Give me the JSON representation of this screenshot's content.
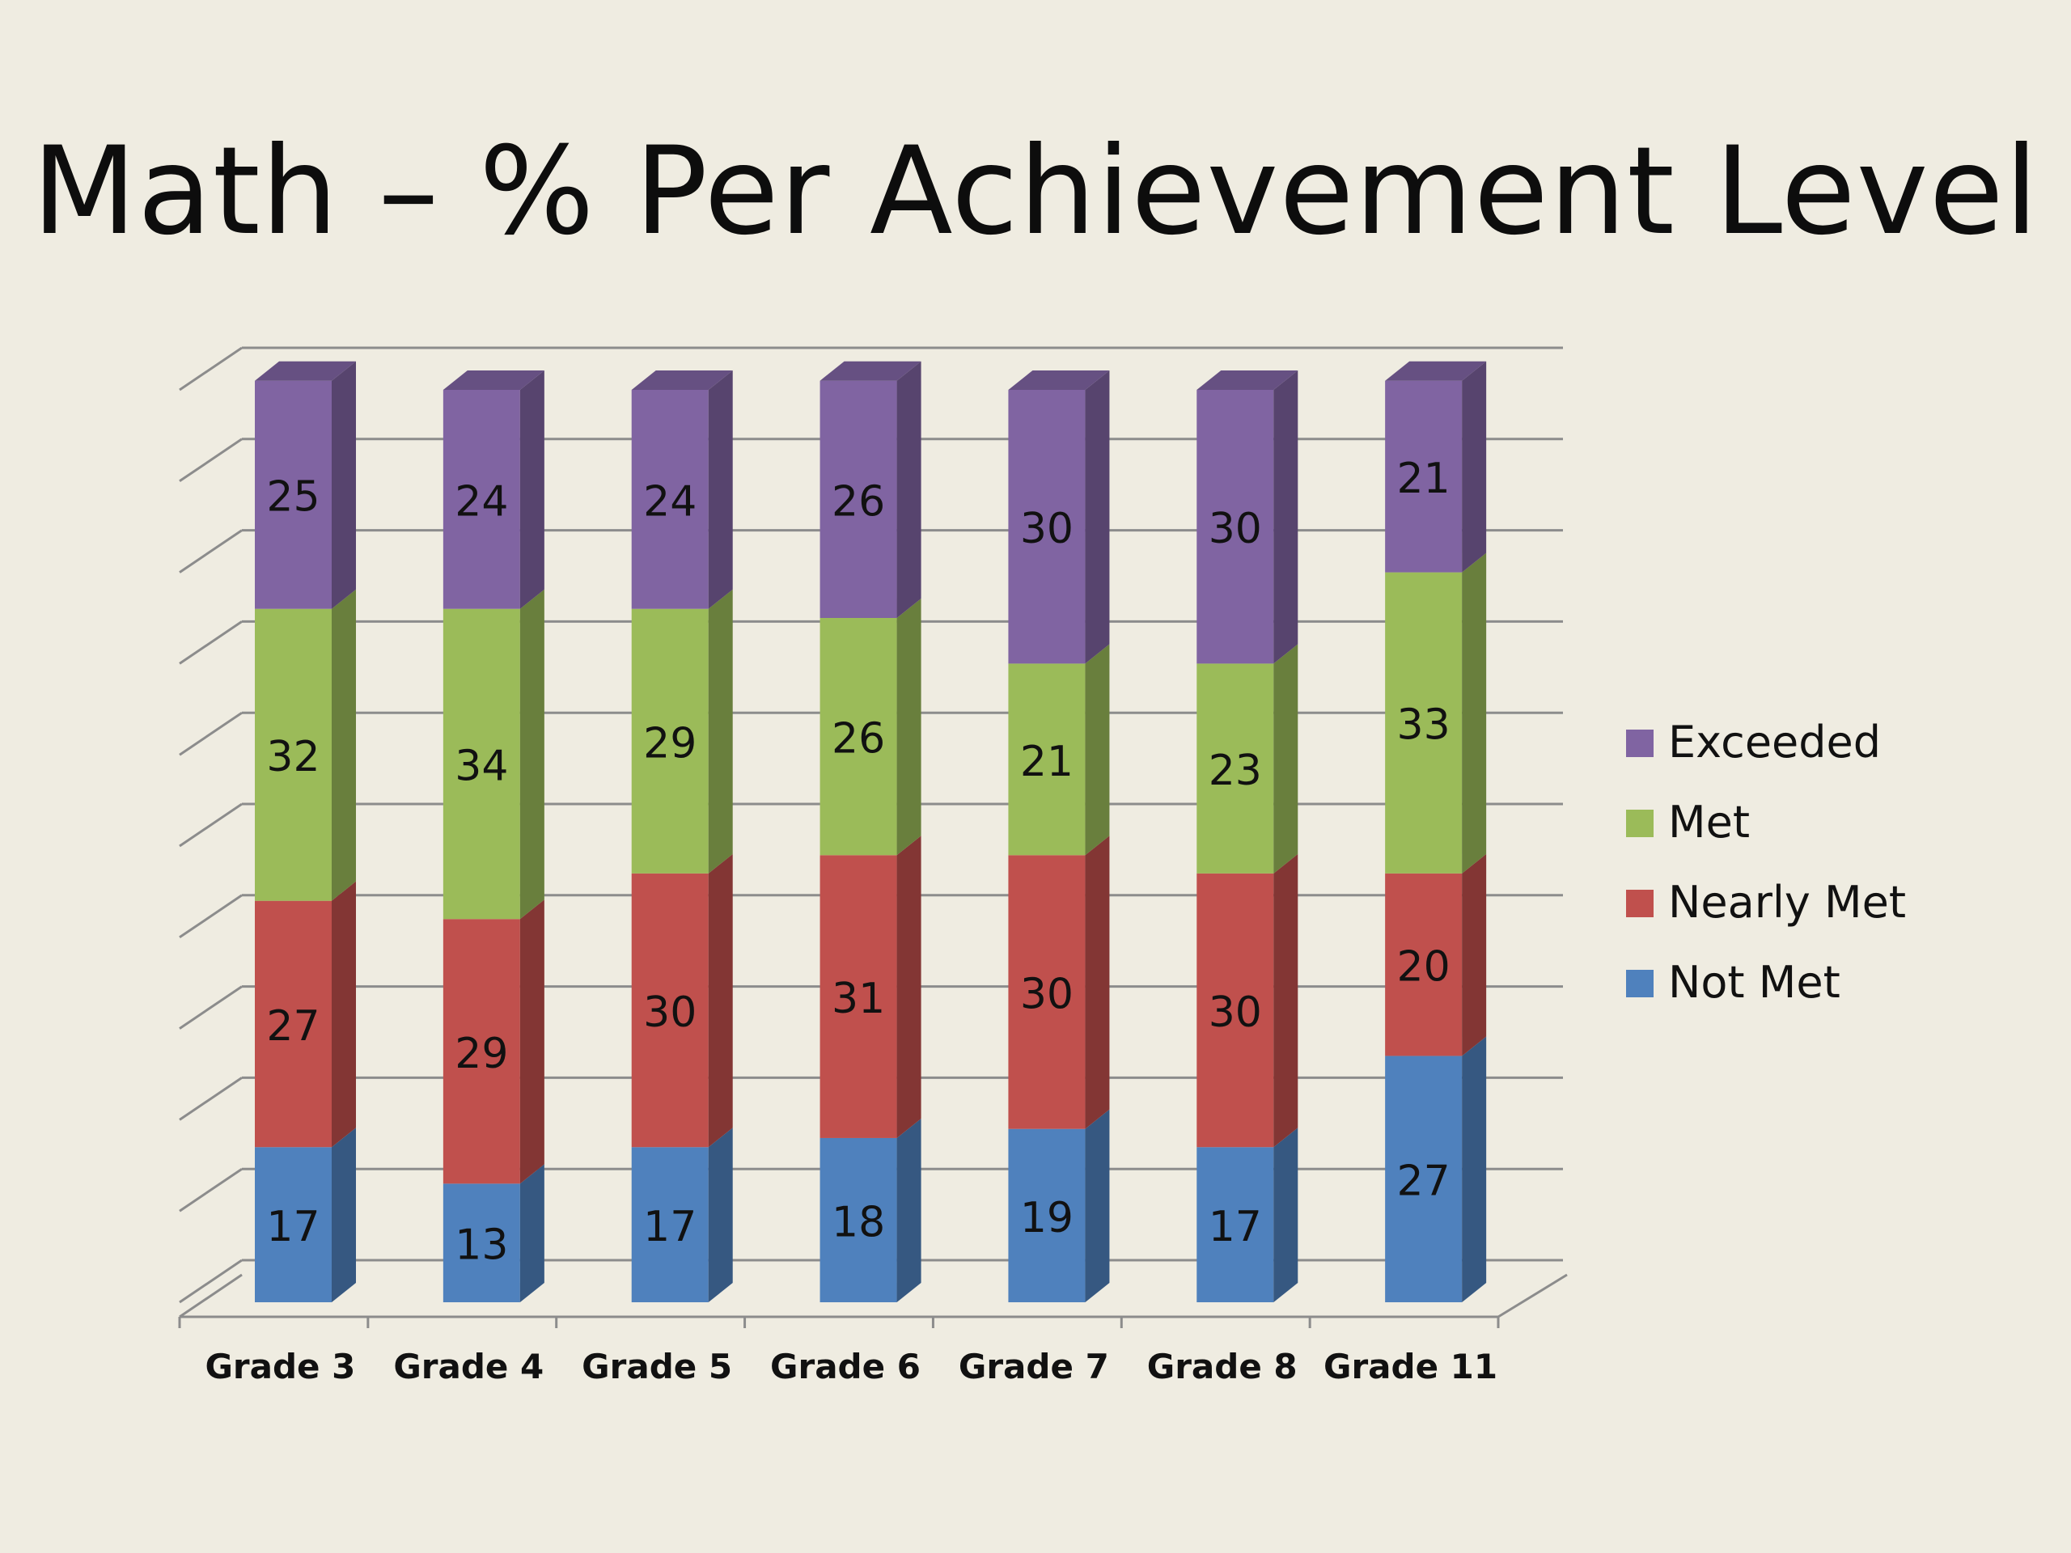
{
  "chart_data": {
    "type": "bar",
    "stacked": true,
    "style": "3d-column",
    "title": "Math – % Per Achievement Level",
    "xlabel": "",
    "ylabel": "",
    "ylim": [
      0,
      100
    ],
    "grid": true,
    "legend_position": "right",
    "categories": [
      "Grade 3",
      "Grade 4",
      "Grade 5",
      "Grade 6",
      "Grade 7",
      "Grade 8",
      "Grade 11"
    ],
    "series": [
      {
        "name": "Not Met",
        "color": "#4f81bd",
        "values": [
          17,
          13,
          17,
          18,
          19,
          17,
          27
        ]
      },
      {
        "name": "Nearly Met",
        "color": "#c0504d",
        "values": [
          27,
          29,
          30,
          31,
          30,
          30,
          20
        ]
      },
      {
        "name": "Met",
        "color": "#9bbb59",
        "values": [
          32,
          34,
          29,
          26,
          21,
          23,
          33
        ]
      },
      {
        "name": "Exceeded",
        "color": "#8064a2",
        "values": [
          25,
          24,
          24,
          26,
          30,
          30,
          21
        ]
      }
    ],
    "legend_order": [
      "Exceeded",
      "Met",
      "Nearly Met",
      "Not Met"
    ]
  }
}
